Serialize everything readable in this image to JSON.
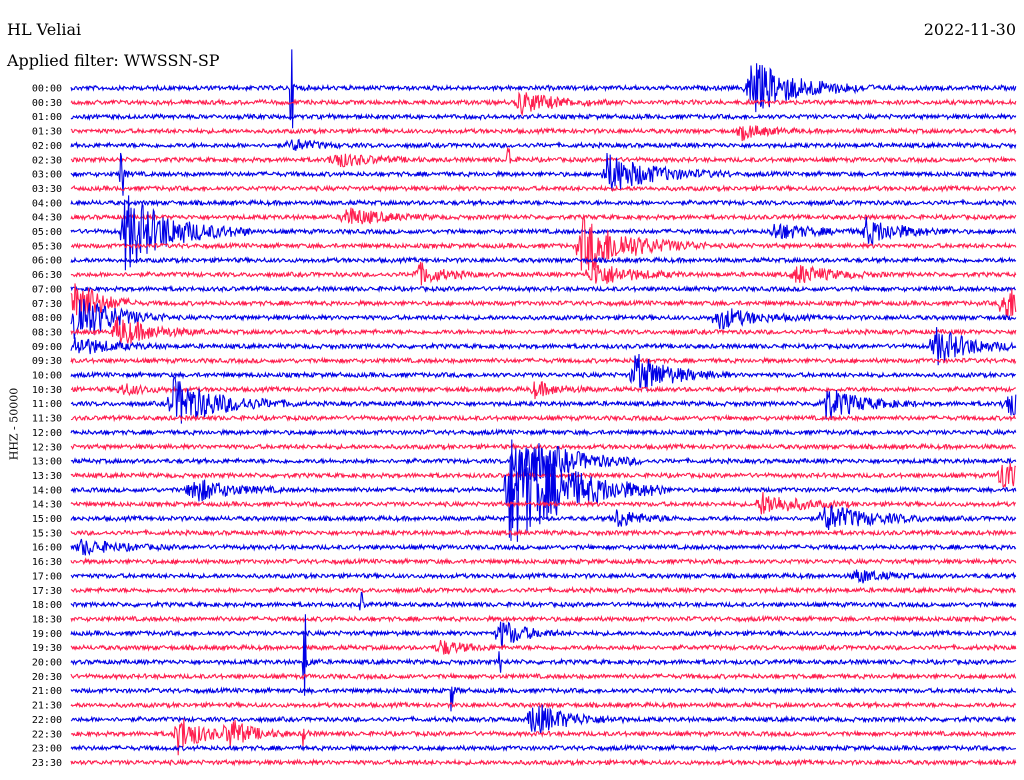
{
  "header": {
    "station": "HL Veliai",
    "date": "2022-11-30",
    "filter_label": "Applied filter: WWSSN-SP"
  },
  "chart_data": {
    "type": "line",
    "ylabel": "HHZ - 50000",
    "title": "",
    "row_labels": [
      "00:00",
      "00:30",
      "01:00",
      "01:30",
      "02:00",
      "02:30",
      "03:00",
      "03:30",
      "04:00",
      "04:30",
      "05:00",
      "05:30",
      "06:00",
      "06:30",
      "07:00",
      "07:30",
      "08:00",
      "08:30",
      "09:00",
      "09:30",
      "10:00",
      "10:30",
      "11:00",
      "11:30",
      "12:00",
      "12:30",
      "13:00",
      "13:30",
      "14:00",
      "14:30",
      "15:00",
      "15:30",
      "16:00",
      "16:30",
      "17:00",
      "17:30",
      "18:00",
      "18:30",
      "19:00",
      "19:30",
      "20:00",
      "20:30",
      "21:00",
      "21:30",
      "22:00",
      "22:30",
      "23:00",
      "23:30"
    ],
    "trace_colors": [
      "#0000e6",
      "#ff1f4f"
    ],
    "minutes_per_row": 30,
    "events": [
      {
        "row": 0,
        "minute": 7.0,
        "amp": 38,
        "dur": 1.2,
        "kind": "spike"
      },
      {
        "row": 0,
        "minute": 21.5,
        "amp": 30,
        "dur": 4,
        "kind": "quake"
      },
      {
        "row": 1,
        "minute": 14.2,
        "amp": 12,
        "dur": 3,
        "kind": "quake"
      },
      {
        "row": 3,
        "minute": 21.3,
        "amp": 8,
        "dur": 2,
        "kind": "quake"
      },
      {
        "row": 4,
        "minute": 7.0,
        "amp": 6,
        "dur": 2,
        "kind": "quake"
      },
      {
        "row": 5,
        "minute": 8.3,
        "amp": 8,
        "dur": 3,
        "kind": "quake"
      },
      {
        "row": 5,
        "minute": 13.9,
        "amp": 14,
        "dur": 1,
        "kind": "spike"
      },
      {
        "row": 6,
        "minute": 1.6,
        "amp": 30,
        "dur": 1,
        "kind": "spike"
      },
      {
        "row": 6,
        "minute": 17.0,
        "amp": 20,
        "dur": 4,
        "kind": "quake"
      },
      {
        "row": 9,
        "minute": 8.7,
        "amp": 10,
        "dur": 3,
        "kind": "quake"
      },
      {
        "row": 10,
        "minute": 1.7,
        "amp": 40,
        "dur": 4,
        "kind": "quake"
      },
      {
        "row": 10,
        "minute": 22.3,
        "amp": 9,
        "dur": 3,
        "kind": "quake"
      },
      {
        "row": 10,
        "minute": 25.2,
        "amp": 14,
        "dur": 3,
        "kind": "quake"
      },
      {
        "row": 11,
        "minute": 16.2,
        "amp": 30,
        "dur": 4,
        "kind": "quake"
      },
      {
        "row": 13,
        "minute": 11.0,
        "amp": 12,
        "dur": 2,
        "kind": "quake"
      },
      {
        "row": 13,
        "minute": 16.5,
        "amp": 14,
        "dur": 3,
        "kind": "quake"
      },
      {
        "row": 13,
        "minute": 23.0,
        "amp": 10,
        "dur": 3,
        "kind": "quake"
      },
      {
        "row": 15,
        "minute": 0.1,
        "amp": 30,
        "dur": 2,
        "kind": "quake"
      },
      {
        "row": 15,
        "minute": 29.6,
        "amp": 22,
        "dur": 2,
        "kind": "quake"
      },
      {
        "row": 16,
        "minute": 0.1,
        "amp": 30,
        "dur": 3,
        "kind": "quake"
      },
      {
        "row": 16,
        "minute": 20.5,
        "amp": 12,
        "dur": 3,
        "kind": "quake"
      },
      {
        "row": 17,
        "minute": 1.4,
        "amp": 16,
        "dur": 3,
        "kind": "quake"
      },
      {
        "row": 18,
        "minute": 0.1,
        "amp": 10,
        "dur": 3,
        "kind": "quake"
      },
      {
        "row": 18,
        "minute": 27.4,
        "amp": 20,
        "dur": 3,
        "kind": "quake"
      },
      {
        "row": 20,
        "minute": 17.9,
        "amp": 22,
        "dur": 3,
        "kind": "quake"
      },
      {
        "row": 21,
        "minute": 1.6,
        "amp": 6,
        "dur": 2,
        "kind": "quake"
      },
      {
        "row": 21,
        "minute": 14.7,
        "amp": 8,
        "dur": 2,
        "kind": "quake"
      },
      {
        "row": 22,
        "minute": 3.2,
        "amp": 26,
        "dur": 4,
        "kind": "quake"
      },
      {
        "row": 22,
        "minute": 23.9,
        "amp": 18,
        "dur": 3,
        "kind": "quake"
      },
      {
        "row": 22,
        "minute": 29.7,
        "amp": 14,
        "dur": 2,
        "kind": "quake"
      },
      {
        "row": 26,
        "minute": 14.1,
        "amp": 34,
        "dur": 4,
        "kind": "quake"
      },
      {
        "row": 27,
        "minute": 29.5,
        "amp": 18,
        "dur": 2,
        "kind": "quake"
      },
      {
        "row": 28,
        "minute": 3.8,
        "amp": 14,
        "dur": 3,
        "kind": "quake"
      },
      {
        "row": 28,
        "minute": 13.9,
        "amp": 60,
        "dur": 5,
        "kind": "quake"
      },
      {
        "row": 29,
        "minute": 21.9,
        "amp": 12,
        "dur": 3,
        "kind": "quake"
      },
      {
        "row": 30,
        "minute": 17.3,
        "amp": 10,
        "dur": 2,
        "kind": "quake"
      },
      {
        "row": 30,
        "minute": 23.9,
        "amp": 14,
        "dur": 4,
        "kind": "quake"
      },
      {
        "row": 32,
        "minute": 0.3,
        "amp": 8,
        "dur": 3,
        "kind": "quake"
      },
      {
        "row": 34,
        "minute": 24.9,
        "amp": 8,
        "dur": 2,
        "kind": "quake"
      },
      {
        "row": 36,
        "minute": 9.2,
        "amp": 12,
        "dur": 1,
        "kind": "spike"
      },
      {
        "row": 38,
        "minute": 13.6,
        "amp": 16,
        "dur": 2,
        "kind": "quake"
      },
      {
        "row": 39,
        "minute": 11.7,
        "amp": 8,
        "dur": 2,
        "kind": "quake"
      },
      {
        "row": 40,
        "minute": 13.6,
        "amp": 10,
        "dur": 1,
        "kind": "spike"
      },
      {
        "row": 40,
        "minute": 7.4,
        "amp": 48,
        "dur": 1,
        "kind": "spike"
      },
      {
        "row": 42,
        "minute": 12.1,
        "amp": 20,
        "dur": 1,
        "kind": "spike"
      },
      {
        "row": 44,
        "minute": 14.6,
        "amp": 18,
        "dur": 3,
        "kind": "quake"
      },
      {
        "row": 45,
        "minute": 3.4,
        "amp": 20,
        "dur": 2,
        "kind": "quake"
      },
      {
        "row": 45,
        "minute": 5.0,
        "amp": 16,
        "dur": 2,
        "kind": "quake"
      },
      {
        "row": 45,
        "minute": 7.4,
        "amp": 14,
        "dur": 1,
        "kind": "spike"
      }
    ]
  }
}
